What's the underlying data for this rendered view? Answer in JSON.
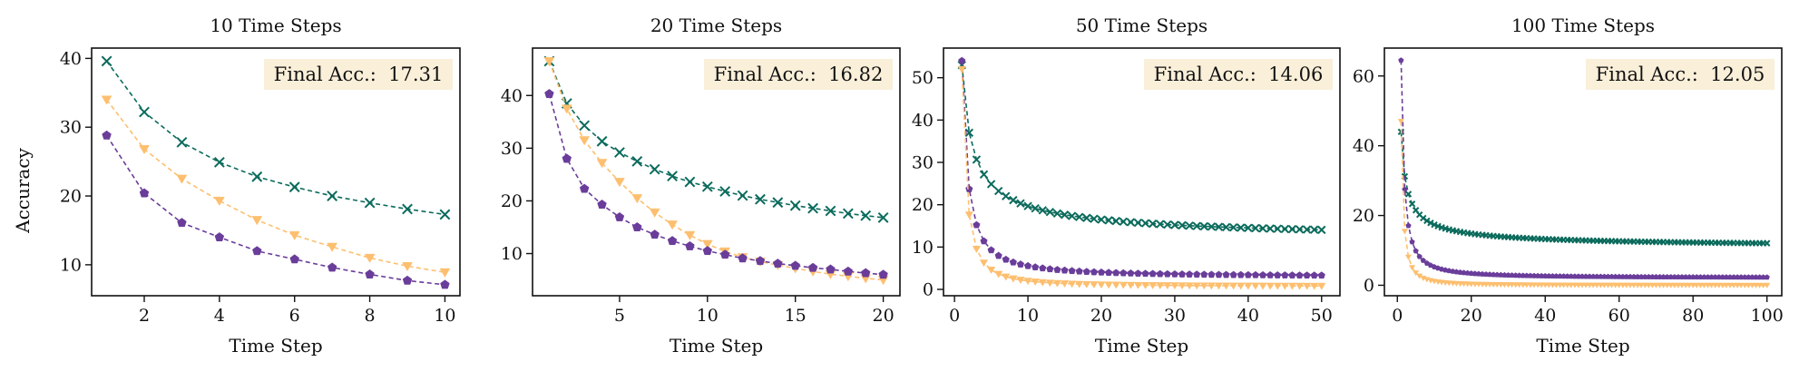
{
  "figure": {
    "ylabel": "Accuracy"
  },
  "colors": {
    "teal": "#0b6b5c",
    "orange": "#fdbf6f",
    "purple": "#6a3d9a",
    "annotation_bg": "#faefd9"
  },
  "chart_data": [
    {
      "type": "line",
      "title": "10 Time Steps",
      "xlabel": "Time Step",
      "ylabel": "Accuracy",
      "xlim": [
        0.6,
        10.4
      ],
      "ylim": [
        5.5,
        41.5
      ],
      "xticks": [
        2,
        4,
        6,
        8,
        10
      ],
      "yticks": [
        10,
        20,
        30,
        40
      ],
      "annotation": "Final Acc.:  17.31",
      "grid": false,
      "series": [
        {
          "color": "teal",
          "marker": "x",
          "x": [
            1,
            2,
            3,
            4,
            5,
            6,
            7,
            8,
            9,
            10
          ],
          "y": [
            39.6,
            32.2,
            27.8,
            24.9,
            22.8,
            21.3,
            20.0,
            19.0,
            18.1,
            17.31
          ]
        },
        {
          "color": "orange",
          "marker": "v",
          "x": [
            1,
            2,
            3,
            4,
            5,
            6,
            7,
            8,
            9,
            10
          ],
          "y": [
            34.0,
            26.8,
            22.5,
            19.3,
            16.5,
            14.3,
            12.6,
            11.0,
            9.8,
            8.9
          ]
        },
        {
          "color": "purple",
          "marker": "p",
          "x": [
            1,
            2,
            3,
            4,
            5,
            6,
            7,
            8,
            9,
            10
          ],
          "y": [
            28.8,
            20.4,
            16.1,
            14.0,
            12.0,
            10.8,
            9.6,
            8.6,
            7.7,
            7.1
          ]
        }
      ]
    },
    {
      "type": "line",
      "title": "20 Time Steps",
      "xlabel": "Time Step",
      "ylabel": "",
      "xlim": [
        0.05,
        20.95
      ],
      "ylim": [
        2.0,
        49.0
      ],
      "xticks": [
        5,
        10,
        15,
        20
      ],
      "yticks": [
        10,
        20,
        30,
        40
      ],
      "annotation": "Final Acc.:  16.82",
      "grid": false,
      "series": [
        {
          "color": "teal",
          "marker": "x",
          "x": [
            1,
            2,
            3,
            4,
            5,
            6,
            7,
            8,
            9,
            10,
            11,
            12,
            13,
            14,
            15,
            16,
            17,
            18,
            19,
            20
          ],
          "y": [
            46.5,
            38.5,
            34.3,
            31.3,
            29.2,
            27.5,
            26.0,
            24.7,
            23.6,
            22.7,
            21.8,
            21.0,
            20.3,
            19.7,
            19.1,
            18.6,
            18.1,
            17.6,
            17.2,
            16.82
          ]
        },
        {
          "color": "orange",
          "marker": "v",
          "x": [
            1,
            2,
            3,
            4,
            5,
            6,
            7,
            8,
            9,
            10,
            11,
            12,
            13,
            14,
            15,
            16,
            17,
            18,
            19,
            20
          ],
          "y": [
            46.5,
            37.5,
            31.5,
            27.2,
            23.6,
            20.5,
            17.8,
            15.5,
            13.5,
            11.8,
            10.4,
            9.3,
            8.5,
            7.8,
            7.2,
            6.6,
            6.1,
            5.7,
            5.3,
            5.0
          ]
        },
        {
          "color": "purple",
          "marker": "p",
          "x": [
            1,
            2,
            3,
            4,
            5,
            6,
            7,
            8,
            9,
            10,
            11,
            12,
            13,
            14,
            15,
            16,
            17,
            18,
            19,
            20
          ],
          "y": [
            40.3,
            28.0,
            22.3,
            19.3,
            16.9,
            15.0,
            13.6,
            12.4,
            11.4,
            10.5,
            9.8,
            9.1,
            8.6,
            8.1,
            7.7,
            7.3,
            7.0,
            6.6,
            6.3,
            6.0
          ]
        }
      ]
    },
    {
      "type": "line",
      "title": "50 Time Steps",
      "xlabel": "Time Step",
      "ylabel": "",
      "xlim": [
        -1.5,
        52.5
      ],
      "ylim": [
        -1.5,
        57.0
      ],
      "xticks": [
        0,
        10,
        20,
        30,
        40,
        50
      ],
      "yticks": [
        0,
        10,
        20,
        30,
        40,
        50
      ],
      "annotation": "Final Acc.:  14.06",
      "grid": false,
      "curves": [
        {
          "color": "teal",
          "marker": "x",
          "points": 50,
          "start": 53.0,
          "end": 14.06,
          "a": 22.0,
          "b": 15.0,
          "p": 0.7
        },
        {
          "color": "purple",
          "marker": "p",
          "points": 50,
          "start": 54.0,
          "end": 3.3,
          "a": 30.0,
          "b": 10.0,
          "p": 1.3
        },
        {
          "color": "orange",
          "marker": "v",
          "points": 50,
          "start": 52.0,
          "end": 0.8,
          "a": 41.0,
          "b": 10.0,
          "p": 1.6
        }
      ]
    },
    {
      "type": "line",
      "title": "100 Time Steps",
      "xlabel": "Time Step",
      "ylabel": "",
      "xlim": [
        -3.5,
        104.0
      ],
      "ylim": [
        -3.0,
        68.0
      ],
      "xticks": [
        0,
        20,
        40,
        60,
        80,
        100
      ],
      "yticks": [
        0,
        20,
        40,
        60
      ],
      "annotation": "Final Acc.:  12.05",
      "grid": false,
      "curves": [
        {
          "color": "teal",
          "marker": "x",
          "points": 100,
          "start": 44.0,
          "end": 12.05,
          "a": 14.0,
          "b": 28.0,
          "p": 0.7
        },
        {
          "color": "purple",
          "marker": "p",
          "points": 100,
          "start": 64.5,
          "end": 2.3,
          "a": 24.5,
          "b": 14.0,
          "p": 1.3
        },
        {
          "color": "orange",
          "marker": "v",
          "points": 100,
          "start": 47.0,
          "end": 0.0,
          "a": 43.0,
          "b": 9.0,
          "p": 1.6
        }
      ]
    }
  ]
}
